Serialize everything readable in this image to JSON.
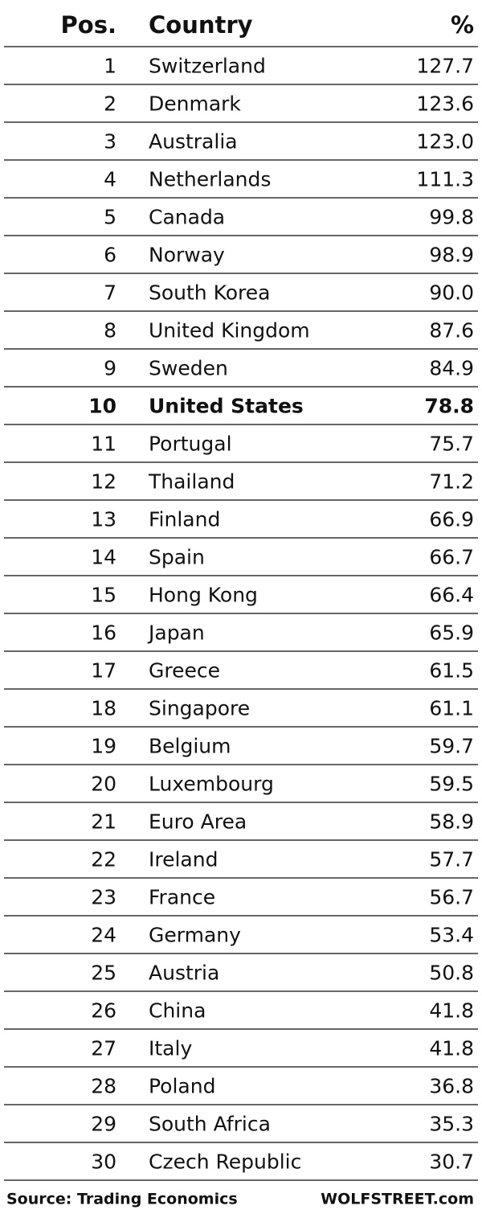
{
  "table": {
    "header": [
      "Pos.",
      "Country",
      "%"
    ],
    "rows": [
      [
        "1",
        "Switzerland",
        "127.7"
      ],
      [
        "2",
        "Denmark",
        "123.6"
      ],
      [
        "3",
        "Australia",
        "123.0"
      ],
      [
        "4",
        "Netherlands",
        "111.3"
      ],
      [
        "5",
        "Canada",
        "99.8"
      ],
      [
        "6",
        "Norway",
        "98.9"
      ],
      [
        "7",
        "South Korea",
        "90.0"
      ],
      [
        "8",
        "United Kingdom",
        "87.6"
      ],
      [
        "9",
        "Sweden",
        "84.9"
      ],
      [
        "10",
        "United States",
        "78.8"
      ],
      [
        "11",
        "Portugal",
        "75.7"
      ],
      [
        "12",
        "Thailand",
        "71.2"
      ],
      [
        "13",
        "Finland",
        "66.9"
      ],
      [
        "14",
        "Spain",
        "66.7"
      ],
      [
        "15",
        "Hong Kong",
        "66.4"
      ],
      [
        "16",
        "Japan",
        "65.9"
      ],
      [
        "17",
        "Greece",
        "61.5"
      ],
      [
        "18",
        "Singapore",
        "61.1"
      ],
      [
        "19",
        "Belgium",
        "59.7"
      ],
      [
        "20",
        "Luxembourg",
        "59.5"
      ],
      [
        "21",
        "Euro Area",
        "58.9"
      ],
      [
        "22",
        "Ireland",
        "57.7"
      ],
      [
        "23",
        "France",
        "56.7"
      ],
      [
        "24",
        "Germany",
        "53.4"
      ],
      [
        "25",
        "Austria",
        "50.8"
      ],
      [
        "26",
        "China",
        "41.8"
      ],
      [
        "27",
        "Italy",
        "41.8"
      ],
      [
        "28",
        "Poland",
        "36.8"
      ],
      [
        "29",
        "South Africa",
        "35.3"
      ],
      [
        "30",
        "Czech Republic",
        "30.7"
      ]
    ],
    "bold_rows": [
      9
    ]
  },
  "footer": {
    "source": "Source: Trading Economics",
    "brand": "WOLFSTREET.com"
  }
}
